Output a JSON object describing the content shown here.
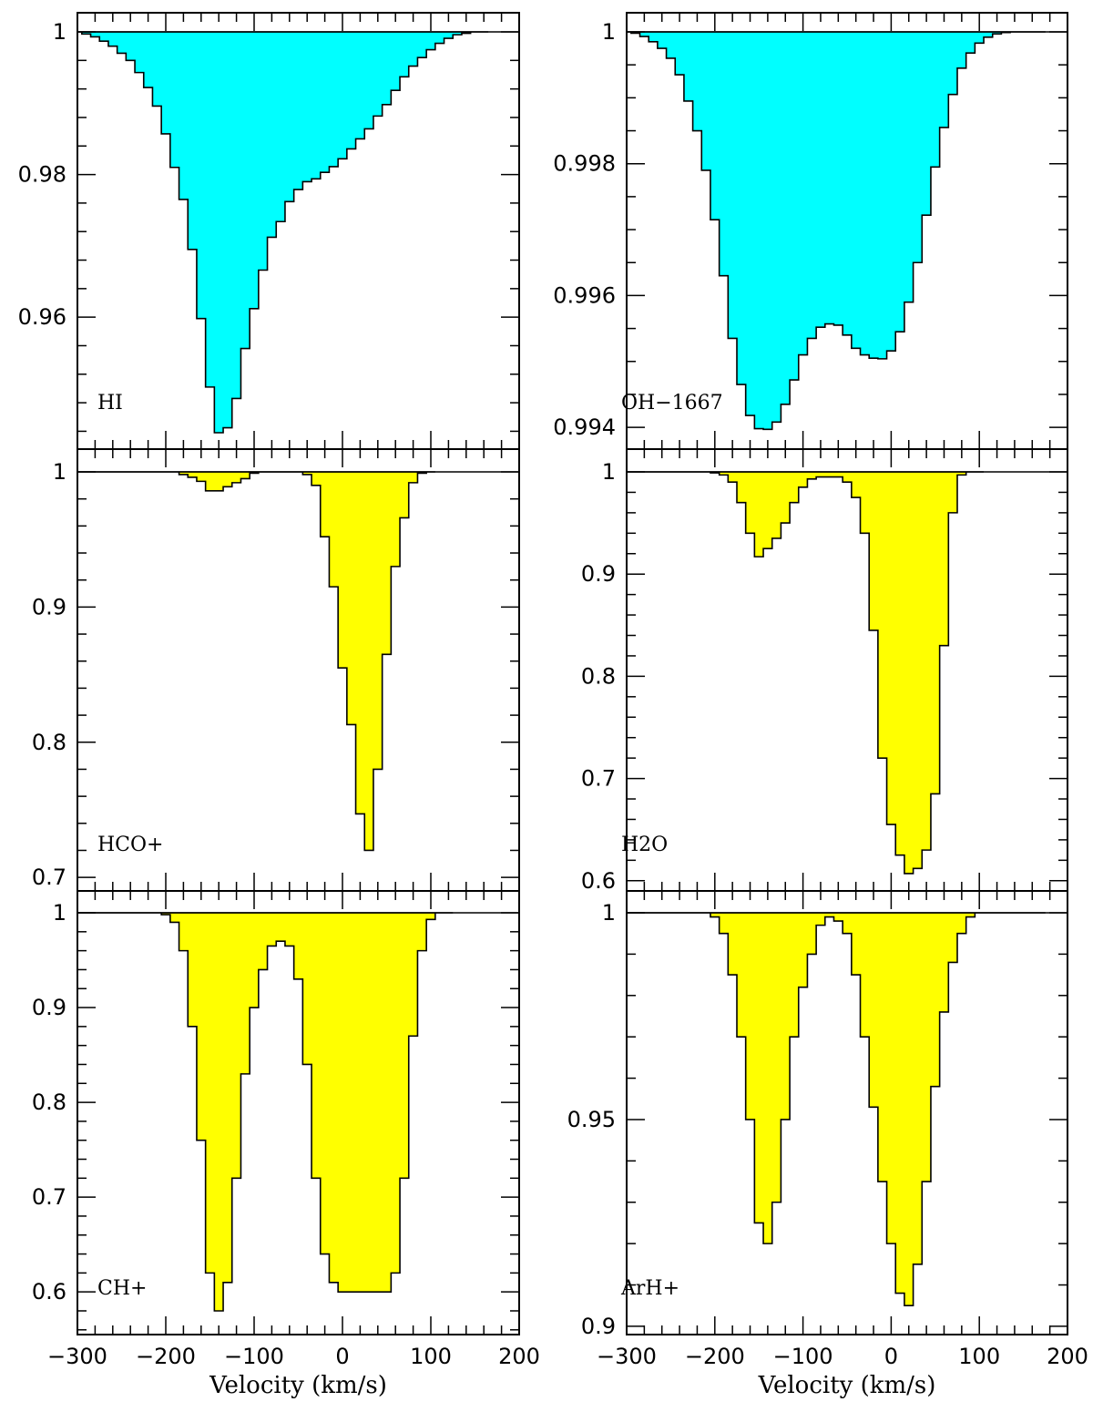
{
  "chart_data": [
    {
      "type": "area",
      "panel_label": "HI",
      "xlim": [
        -300,
        200
      ],
      "ylim": [
        0.9415,
        1.0
      ],
      "yticks_major": [
        0.96,
        0.98,
        1
      ],
      "yticks_minor_step": 0.004,
      "ytick_labels": [
        "0.96",
        "0.98",
        "1"
      ],
      "xticks_major": [
        -300,
        -200,
        -100,
        0,
        100,
        200
      ],
      "xtick_labels": [
        "−300",
        "−200",
        "−100",
        "0",
        "100",
        "200"
      ],
      "xticks_minor_step": 20,
      "show_x_labels": false,
      "xlabel": "",
      "fill_color": "#00ffff",
      "x": [
        -300,
        -290,
        -280,
        -270,
        -260,
        -250,
        -240,
        -230,
        -220,
        -210,
        -200,
        -190,
        -180,
        -170,
        -160,
        -150,
        -140,
        -130,
        -120,
        -110,
        -100,
        -90,
        -80,
        -70,
        -60,
        -50,
        -40,
        -30,
        -20,
        -10,
        0,
        10,
        20,
        30,
        40,
        50,
        60,
        70,
        80,
        90,
        100,
        110,
        120,
        130,
        140,
        150,
        160
      ],
      "y": [
        1.0,
        0.9997,
        0.9993,
        0.9987,
        0.998,
        0.997,
        0.996,
        0.9943,
        0.9922,
        0.9896,
        0.9857,
        0.981,
        0.9765,
        0.9695,
        0.9598,
        0.9502,
        0.9438,
        0.9445,
        0.9486,
        0.9556,
        0.9612,
        0.9666,
        0.9712,
        0.9734,
        0.9762,
        0.9779,
        0.979,
        0.9794,
        0.9803,
        0.9811,
        0.9822,
        0.9836,
        0.985,
        0.9864,
        0.9882,
        0.9898,
        0.9918,
        0.9937,
        0.9952,
        0.9964,
        0.9975,
        0.9984,
        0.9991,
        0.9996,
        0.9998,
        1.0,
        1.0
      ]
    },
    {
      "type": "area",
      "panel_label": "OH−1667",
      "xlim": [
        -300,
        200
      ],
      "ylim": [
        0.99367,
        1.0
      ],
      "yticks_major": [
        0.994,
        0.996,
        0.998,
        1
      ],
      "yticks_minor_step": 0.0005,
      "ytick_labels": [
        "0.994",
        "0.996",
        "0.998",
        "1"
      ],
      "xticks_major": [
        -300,
        -200,
        -100,
        0,
        100,
        200
      ],
      "xtick_labels": [
        "−300",
        "−200",
        "−100",
        "0",
        "100",
        "200"
      ],
      "xticks_minor_step": 20,
      "show_x_labels": false,
      "xlabel": "",
      "fill_color": "#00ffff",
      "x": [
        -300,
        -290,
        -280,
        -270,
        -260,
        -250,
        -240,
        -230,
        -220,
        -210,
        -200,
        -190,
        -180,
        -170,
        -160,
        -150,
        -140,
        -130,
        -120,
        -110,
        -100,
        -90,
        -80,
        -70,
        -60,
        -50,
        -40,
        -30,
        -20,
        -10,
        0,
        10,
        20,
        30,
        40,
        50,
        60,
        70,
        80,
        90,
        100,
        110,
        120,
        130,
        140,
        150,
        160,
        170
      ],
      "y": [
        1.0,
        0.99998,
        0.99993,
        0.99985,
        0.99975,
        0.9996,
        0.99935,
        0.99895,
        0.9985,
        0.9979,
        0.99715,
        0.9963,
        0.99535,
        0.99465,
        0.99418,
        0.99398,
        0.99397,
        0.99408,
        0.99435,
        0.99472,
        0.9951,
        0.99535,
        0.99552,
        0.99557,
        0.99555,
        0.9954,
        0.9952,
        0.9951,
        0.99505,
        0.99504,
        0.99516,
        0.99545,
        0.9959,
        0.9965,
        0.99722,
        0.99795,
        0.99855,
        0.99905,
        0.99945,
        0.99968,
        0.99983,
        0.99992,
        0.99997,
        0.99999,
        1.0,
        1.0,
        1.0,
        1.0
      ]
    },
    {
      "type": "area",
      "panel_label": "HCO+",
      "xlim": [
        -300,
        200
      ],
      "ylim": [
        0.69,
        1.0
      ],
      "yticks_major": [
        0.7,
        0.8,
        0.9,
        1
      ],
      "yticks_minor_step": 0.02,
      "ytick_labels": [
        "0.7",
        "0.8",
        "0.9",
        "1"
      ],
      "xticks_major": [
        -300,
        -200,
        -100,
        0,
        100,
        200
      ],
      "xtick_labels": [
        "−300",
        "−200",
        "−100",
        "0",
        "100",
        "200"
      ],
      "xticks_minor_step": 20,
      "show_x_labels": false,
      "xlabel": "",
      "fill_color": "#ffff00",
      "x": [
        -300,
        -290,
        -280,
        -270,
        -260,
        -250,
        -240,
        -230,
        -220,
        -210,
        -200,
        -190,
        -180,
        -170,
        -160,
        -150,
        -140,
        -130,
        -120,
        -110,
        -100,
        -90,
        -80,
        -70,
        -60,
        -50,
        -40,
        -30,
        -20,
        -10,
        0,
        10,
        20,
        30,
        40,
        50,
        60,
        70,
        80,
        90,
        100
      ],
      "y": [
        1.0,
        1.0,
        1.0,
        1.0,
        1.0,
        1.0,
        1.0,
        1.0,
        1.0,
        1.0,
        1.0,
        1.0,
        0.998,
        0.996,
        0.993,
        0.986,
        0.986,
        0.989,
        0.992,
        0.995,
        0.999,
        1.0,
        1.0,
        1.0,
        1.0,
        1.0,
        0.998,
        0.99,
        0.952,
        0.915,
        0.855,
        0.813,
        0.747,
        0.72,
        0.78,
        0.865,
        0.93,
        0.966,
        0.992,
        0.999,
        1.0
      ]
    },
    {
      "type": "area",
      "panel_label": "H2O",
      "xlim": [
        -300,
        200
      ],
      "ylim": [
        0.59,
        1.0
      ],
      "yticks_major": [
        0.6,
        0.7,
        0.8,
        0.9,
        1
      ],
      "yticks_minor_step": 0.02,
      "ytick_labels": [
        "0.6",
        "0.7",
        "0.8",
        "0.9",
        "1"
      ],
      "xticks_major": [
        -300,
        -200,
        -100,
        0,
        100,
        200
      ],
      "xtick_labels": [
        "−300",
        "−200",
        "−100",
        "0",
        "100",
        "200"
      ],
      "xticks_minor_step": 20,
      "show_x_labels": false,
      "xlabel": "",
      "fill_color": "#ffff00",
      "x": [
        -300,
        -290,
        -280,
        -270,
        -260,
        -250,
        -240,
        -230,
        -220,
        -210,
        -200,
        -190,
        -180,
        -170,
        -160,
        -150,
        -140,
        -130,
        -120,
        -110,
        -100,
        -90,
        -80,
        -70,
        -60,
        -50,
        -40,
        -30,
        -20,
        -10,
        0,
        10,
        20,
        30,
        40,
        50,
        60,
        70,
        80,
        90,
        100
      ],
      "y": [
        1.0,
        1.0,
        1.0,
        1.0,
        1.0,
        1.0,
        1.0,
        1.0,
        1.0,
        1.0,
        0.999,
        0.997,
        0.99,
        0.97,
        0.94,
        0.917,
        0.925,
        0.935,
        0.95,
        0.97,
        0.985,
        0.993,
        0.995,
        0.995,
        0.995,
        0.99,
        0.975,
        0.94,
        0.845,
        0.72,
        0.655,
        0.625,
        0.607,
        0.612,
        0.63,
        0.685,
        0.83,
        0.96,
        0.997,
        1.0,
        1.0
      ]
    },
    {
      "type": "area",
      "panel_label": "CH+",
      "xlim": [
        -300,
        200
      ],
      "ylim": [
        0.555,
        1.02
      ],
      "yticks_major": [
        0.6,
        0.7,
        0.8,
        0.9,
        1
      ],
      "yticks_minor_step": 0.02,
      "ytick_labels": [
        "0.6",
        "0.7",
        "0.8",
        "0.9",
        "1"
      ],
      "xticks_major": [
        -300,
        -200,
        -100,
        0,
        100,
        200
      ],
      "xtick_labels": [
        "−300",
        "−200",
        "−100",
        "0",
        "100",
        "200"
      ],
      "xticks_minor_step": 20,
      "show_x_labels": true,
      "xlabel": "Velocity (km/s)",
      "fill_color": "#ffff00",
      "x": [
        -300,
        -290,
        -280,
        -270,
        -260,
        -250,
        -240,
        -230,
        -220,
        -210,
        -200,
        -190,
        -180,
        -170,
        -160,
        -150,
        -140,
        -130,
        -120,
        -110,
        -100,
        -90,
        -80,
        -70,
        -60,
        -50,
        -40,
        -30,
        -20,
        -10,
        0,
        10,
        20,
        30,
        40,
        50,
        60,
        70,
        80,
        90,
        100,
        110,
        120
      ],
      "y": [
        1.0,
        1.0,
        1.0,
        1.0,
        1.0,
        1.0,
        1.0,
        1.0,
        1.0,
        1.0,
        0.998,
        0.99,
        0.96,
        0.88,
        0.76,
        0.62,
        0.58,
        0.61,
        0.72,
        0.83,
        0.9,
        0.94,
        0.965,
        0.97,
        0.965,
        0.93,
        0.84,
        0.72,
        0.64,
        0.61,
        0.6,
        0.6,
        0.6,
        0.6,
        0.6,
        0.6,
        0.62,
        0.72,
        0.87,
        0.96,
        0.993,
        1.0,
        1.0
      ]
    },
    {
      "type": "area",
      "panel_label": "ArH+",
      "xlim": [
        -300,
        200
      ],
      "ylim": [
        0.898,
        1.0
      ],
      "yticks_major": [
        0.9,
        0.95,
        1
      ],
      "yticks_minor_step": 0.01,
      "ytick_labels": [
        "0.9",
        "0.95",
        "1"
      ],
      "xticks_major": [
        -300,
        -200,
        -100,
        0,
        100,
        200
      ],
      "xtick_labels": [
        "−300",
        "−200",
        "−100",
        "0",
        "100",
        "200"
      ],
      "xticks_minor_step": 20,
      "show_x_labels": true,
      "xlabel": "Velocity (km/s)",
      "fill_color": "#ffff00",
      "x": [
        -300,
        -290,
        -280,
        -270,
        -260,
        -250,
        -240,
        -230,
        -220,
        -210,
        -200,
        -190,
        -180,
        -170,
        -160,
        -150,
        -140,
        -130,
        -120,
        -110,
        -100,
        -90,
        -80,
        -70,
        -60,
        -50,
        -40,
        -30,
        -20,
        -10,
        0,
        10,
        20,
        30,
        40,
        50,
        60,
        70,
        80,
        90,
        100,
        110,
        120,
        130,
        140,
        150,
        160,
        170
      ],
      "y": [
        1.0,
        1.0,
        1.0,
        1.0,
        1.0,
        1.0,
        1.0,
        1.0,
        1.0,
        1.0,
        0.999,
        0.995,
        0.985,
        0.97,
        0.95,
        0.925,
        0.92,
        0.93,
        0.95,
        0.97,
        0.982,
        0.99,
        0.997,
        0.999,
        0.998,
        0.995,
        0.985,
        0.97,
        0.953,
        0.935,
        0.92,
        0.908,
        0.905,
        0.915,
        0.935,
        0.958,
        0.976,
        0.988,
        0.995,
        0.999,
        1.0,
        1.0,
        1.0,
        1.0,
        1.0,
        1.0,
        1.0,
        1.0
      ]
    }
  ]
}
